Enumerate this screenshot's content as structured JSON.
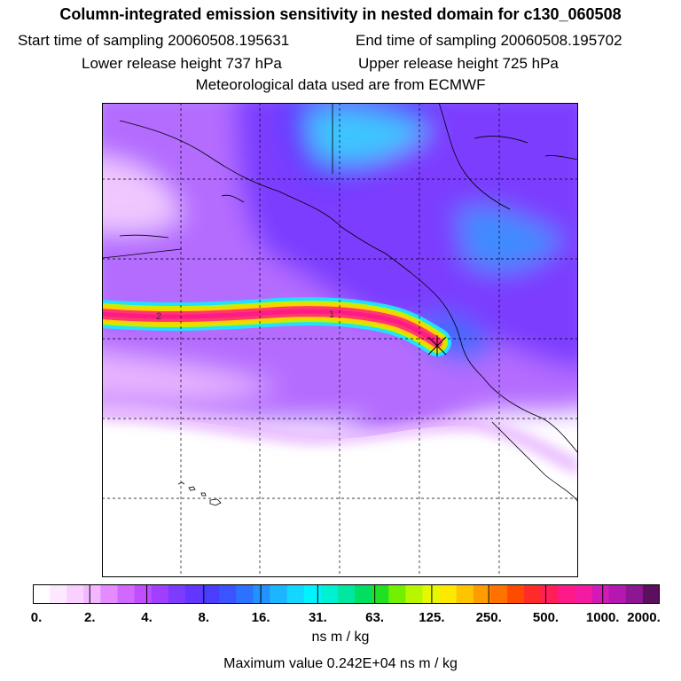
{
  "header": {
    "title": "Column-integrated emission sensitivity in nested domain for c130_060508",
    "start_sampling": "Start time of sampling 20060508.195631",
    "end_sampling": "End time of sampling 20060508.195702",
    "lower_release": "Lower release height  737 hPa",
    "upper_release": "Upper release height  725 hPa",
    "met_data": "Meteorological data used are from ECMWF"
  },
  "map": {
    "track_labels": [
      "2",
      "1"
    ],
    "colors": {
      "background_low": "#f6e6ff",
      "background_mid": "#b36bff",
      "background_high": "#7a33ff",
      "cyan_band": "#33dfff",
      "plume_core": "#ff2f77"
    }
  },
  "colorbar": {
    "ticks": [
      "0.",
      "2.",
      "4.",
      "8.",
      "16.",
      "31.",
      "63.",
      "125.",
      "250.",
      "500.",
      "1000.",
      "2000."
    ],
    "colors": [
      "#ffffff",
      "#fde9ff",
      "#f8d1ff",
      "#f2b7ff",
      "#e38bff",
      "#d269ff",
      "#c04dff",
      "#9f3fff",
      "#7d3bff",
      "#6236ff",
      "#4b3dff",
      "#3a55ff",
      "#2d72ff",
      "#2292ff",
      "#1bb6ff",
      "#14d7ff",
      "#00f4ff",
      "#00f0d4",
      "#00e7a0",
      "#00df62",
      "#1fe023",
      "#73f000",
      "#b8f600",
      "#e6f800",
      "#ffe800",
      "#ffc400",
      "#ff9c00",
      "#ff7200",
      "#ff4a00",
      "#ff2a2a",
      "#ff1e5a",
      "#ff1a88",
      "#f41aa2",
      "#d41ab4",
      "#b418b0",
      "#8f1692",
      "#5c0f5e"
    ],
    "units": "ns m / kg",
    "max_value": "Maximum value  0.242E+04 ns m / kg"
  }
}
